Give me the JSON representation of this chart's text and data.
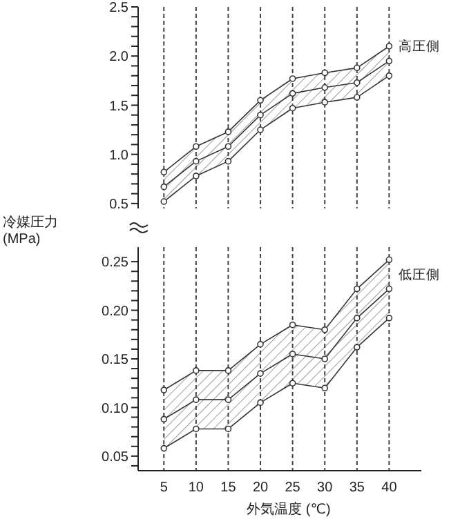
{
  "chart_data": [
    {
      "type": "line",
      "ylabel": "冷媒圧力\n(MPa)",
      "x": [
        5,
        10,
        15,
        20,
        25,
        30,
        35,
        40
      ],
      "xticks": [
        5,
        10,
        15,
        20,
        25,
        30,
        35,
        40
      ],
      "ylim": [
        0.45,
        2.5
      ],
      "yticks": [
        0.5,
        {
          "value": 0.6,
          "label": null
        },
        {
          "value": 0.7,
          "label": null
        },
        {
          "value": 0.8,
          "label": null
        },
        {
          "value": 0.9,
          "label": null
        },
        {
          "value": 1,
          "label": "1.0"
        },
        {
          "value": 1.1,
          "label": null
        },
        {
          "value": 1.2,
          "label": null
        },
        {
          "value": 1.3,
          "label": null
        },
        {
          "value": 1.4,
          "label": null
        },
        1.5,
        {
          "value": 1.6,
          "label": null
        },
        {
          "value": 1.7,
          "label": null
        },
        {
          "value": 1.8,
          "label": null
        },
        {
          "value": 1.9,
          "label": null
        },
        {
          "value": 2,
          "label": "2.0"
        },
        {
          "value": 2.1,
          "label": null
        },
        {
          "value": 2.2,
          "label": null
        },
        {
          "value": 2.3,
          "label": null
        },
        {
          "value": 2.4,
          "label": null
        },
        2.5
      ],
      "tick_labels": "y",
      "grid": "x",
      "marker": "circle",
      "series": [
        {
          "color": "#333333",
          "values": [
            0.82,
            1.08,
            1.23,
            1.55,
            1.77,
            1.83,
            1.88,
            2.1
          ]
        },
        {
          "name": "高圧側",
          "color": "#333333",
          "values": [
            0.67,
            0.93,
            1.08,
            1.4,
            1.62,
            1.68,
            1.73,
            1.95
          ],
          "lower": [
            0.52,
            0.78,
            0.93,
            1.25,
            1.47,
            1.53,
            1.58,
            1.8
          ],
          "upper": [
            0.82,
            1.08,
            1.23,
            1.55,
            1.77,
            1.83,
            1.88,
            2.1
          ]
        },
        {
          "color": "#333333",
          "values": [
            0.52,
            0.78,
            0.93,
            1.25,
            1.47,
            1.53,
            1.58,
            1.8
          ]
        }
      ]
    },
    {
      "type": "line",
      "xlabel": "外気温度 (℃)",
      "x": [
        5,
        10,
        15,
        20,
        25,
        30,
        35,
        40
      ],
      "xlim": [
        1,
        45
      ],
      "xticks": [
        5,
        10,
        15,
        20,
        25,
        30,
        35,
        40
      ],
      "ylim": [
        0.035,
        0.265
      ],
      "yticks": [
        {
          "value": 0.04,
          "label": null
        },
        0.05,
        {
          "value": 0.06,
          "label": null
        },
        {
          "value": 0.07,
          "label": null
        },
        {
          "value": 0.08,
          "label": null
        },
        {
          "value": 0.09,
          "label": null
        },
        {
          "value": 0.1,
          "label": "0.10"
        },
        {
          "value": 0.11,
          "label": null
        },
        {
          "value": 0.12,
          "label": null
        },
        {
          "value": 0.13,
          "label": null
        },
        {
          "value": 0.14,
          "label": null
        },
        0.15,
        {
          "value": 0.16,
          "label": null
        },
        {
          "value": 0.17,
          "label": null
        },
        {
          "value": 0.18,
          "label": null
        },
        {
          "value": 0.19,
          "label": null
        },
        {
          "value": 0.2,
          "label": "0.20"
        },
        {
          "value": 0.21,
          "label": null
        },
        {
          "value": 0.22,
          "label": null
        },
        {
          "value": 0.23,
          "label": null
        },
        {
          "value": 0.24,
          "label": null
        },
        0.25
      ],
      "grid": "x",
      "marker": "circle",
      "series": [
        {
          "color": "#333333",
          "values": [
            0.118,
            0.138,
            0.138,
            0.165,
            0.185,
            0.18,
            0.222,
            0.252
          ]
        },
        {
          "name": "低圧側",
          "color": "#333333",
          "values": [
            0.088,
            0.108,
            0.108,
            0.135,
            0.155,
            0.15,
            0.192,
            0.222
          ],
          "lower": [
            0.058,
            0.078,
            0.078,
            0.105,
            0.125,
            0.12,
            0.162,
            0.192
          ],
          "upper": [
            0.118,
            0.138,
            0.138,
            0.165,
            0.185,
            0.18,
            0.222,
            0.252
          ]
        },
        {
          "color": "#333333",
          "values": [
            0.058,
            0.078,
            0.078,
            0.105,
            0.125,
            0.12,
            0.162,
            0.192
          ]
        }
      ]
    }
  ]
}
